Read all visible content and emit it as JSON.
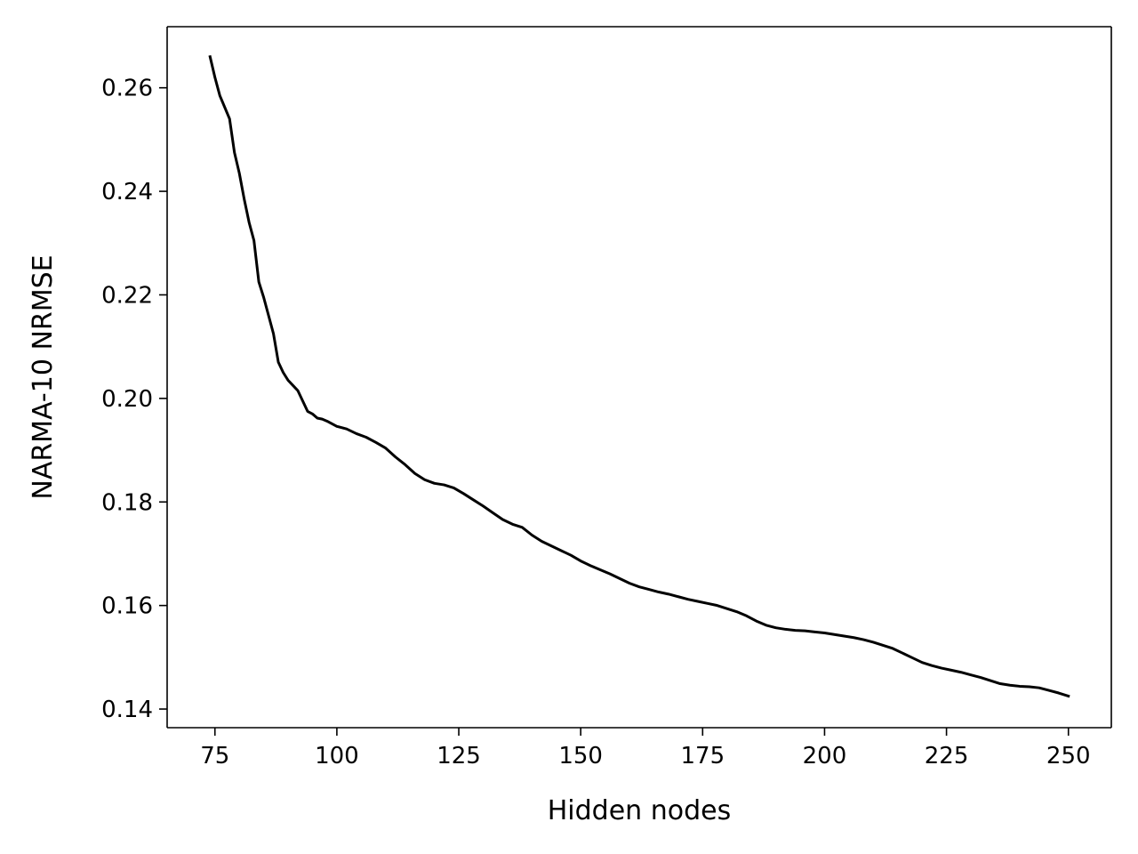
{
  "chart_data": {
    "type": "line",
    "title": "",
    "xlabel": "Hidden nodes",
    "ylabel": "NARMA-10 NRMSE",
    "xlim": [
      65.2,
      258.8
    ],
    "ylim": [
      0.1364,
      0.2718
    ],
    "xticks": [
      75,
      100,
      125,
      150,
      175,
      200,
      225,
      250
    ],
    "yticks": [
      0.14,
      0.16,
      0.18,
      0.2,
      0.22,
      0.24,
      0.26
    ],
    "ytick_labels": [
      "0.14",
      "0.16",
      "0.18",
      "0.20",
      "0.22",
      "0.24",
      "0.26"
    ],
    "grid": false,
    "legend": "none",
    "series": [
      {
        "color": "#000000",
        "x": [
          74,
          75,
          76,
          78,
          79,
          80,
          81,
          82,
          83,
          84,
          85,
          86,
          87,
          88,
          89,
          90,
          91,
          92,
          93,
          94,
          95,
          96,
          97,
          98,
          100,
          102,
          104,
          106,
          108,
          110,
          112,
          114,
          116,
          118,
          120,
          122,
          124,
          126,
          128,
          130,
          132,
          134,
          136,
          138,
          140,
          142,
          144,
          146,
          148,
          150,
          152,
          154,
          156,
          158,
          160,
          162,
          164,
          166,
          168,
          170,
          172,
          174,
          176,
          178,
          180,
          182,
          184,
          186,
          188,
          190,
          192,
          194,
          196,
          198,
          200,
          202,
          204,
          206,
          208,
          210,
          212,
          214,
          216,
          218,
          220,
          222,
          224,
          226,
          228,
          230,
          232,
          234,
          236,
          238,
          240,
          242,
          244,
          246,
          248,
          250
        ],
        "y": [
          0.266,
          0.262,
          0.2585,
          0.254,
          0.2475,
          0.2435,
          0.2385,
          0.234,
          0.2305,
          0.2225,
          0.2195,
          0.216,
          0.2125,
          0.207,
          0.205,
          0.2035,
          0.2025,
          0.2015,
          0.1995,
          0.1975,
          0.197,
          0.1962,
          0.196,
          0.1956,
          0.1946,
          0.1941,
          0.1932,
          0.1925,
          0.1915,
          0.1904,
          0.1887,
          0.1872,
          0.1855,
          0.1843,
          0.1836,
          0.1833,
          0.1827,
          0.1816,
          0.1804,
          0.1792,
          0.1779,
          0.1766,
          0.1757,
          0.1751,
          0.1736,
          0.1724,
          0.1715,
          0.1706,
          0.1697,
          0.1686,
          0.1677,
          0.1669,
          0.1661,
          0.1652,
          0.1643,
          0.1636,
          0.1631,
          0.1626,
          0.1622,
          0.1617,
          0.1612,
          0.1608,
          0.1604,
          0.16,
          0.1594,
          0.1588,
          0.158,
          0.157,
          0.1562,
          0.1557,
          0.1554,
          0.1552,
          0.1551,
          0.1549,
          0.1547,
          0.1544,
          0.1541,
          0.1538,
          0.1534,
          0.1529,
          0.1523,
          0.1517,
          0.1508,
          0.1499,
          0.149,
          0.1484,
          0.1479,
          0.1475,
          0.1471,
          0.1466,
          0.1461,
          0.1455,
          0.1449,
          0.1446,
          0.1444,
          0.1443,
          0.1441,
          0.1436,
          0.1431,
          0.1425
        ]
      }
    ]
  }
}
